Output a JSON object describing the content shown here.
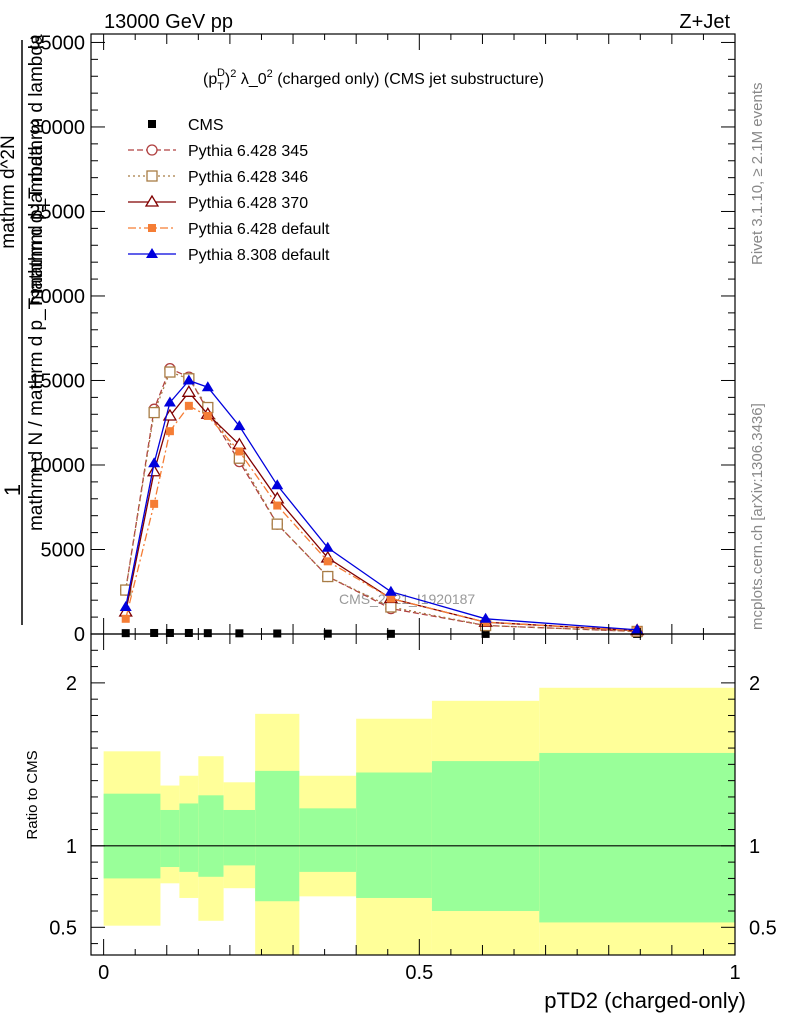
{
  "header": {
    "energy_label": "13000 GeV pp",
    "process_label": "Z+Jet"
  },
  "side_text": {
    "rivet": "Rivet 3.1.10, ≥ 2.1M events",
    "mcplots": "mcplots.cern.ch [arXiv:1306.3436]"
  },
  "chart_data": [
    {
      "type": "line",
      "title": "(p_T^D)^2 λ_0^2 (charged only) (CMS jet substructure)",
      "title_parts": {
        "p": "(p",
        "sub": "T",
        "sup": "D",
        "rest1": ")",
        "sup2": "2",
        "mid": " λ_0",
        "sup3": "2",
        "rest2": " (charged only) (CMS jet substructure)"
      },
      "ylabel_lines": [
        "1",
        "mathrm d N / mathrm d p_T mathrm d lambda",
        "mathrm d^2N",
        "mathrm d p_T mathrm d lambda"
      ],
      "watermark": "CMS_2021_I1920187",
      "ylim": [
        0,
        35500
      ],
      "xlim": [
        -0.02,
        1.0
      ],
      "yticks": [
        0,
        5000,
        10000,
        15000,
        20000,
        25000,
        30000,
        35000
      ],
      "ytick_labels": [
        "0",
        "5000",
        "10000",
        "15000",
        "20000",
        "25000",
        "30000",
        "35000"
      ],
      "legend_position": "top-left",
      "series": [
        {
          "name": "CMS",
          "color": "#000000",
          "marker": "square-filled",
          "line": "none",
          "x": [
            0.035,
            0.08,
            0.105,
            0.135,
            0.165,
            0.215,
            0.275,
            0.355,
            0.455,
            0.605,
            0.845
          ],
          "y": [
            50,
            60,
            60,
            60,
            50,
            40,
            30,
            20,
            10,
            5,
            2
          ]
        },
        {
          "name": "Pythia 6.428 345",
          "color": "#b04040",
          "marker": "circle-open",
          "line": "dashed",
          "x": [
            0.035,
            0.08,
            0.105,
            0.135,
            0.165,
            0.215,
            0.275,
            0.355,
            0.455,
            0.605,
            0.845
          ],
          "y": [
            2600,
            13300,
            15700,
            15200,
            13200,
            10200,
            6500,
            3400,
            1500,
            500,
            150
          ]
        },
        {
          "name": "Pythia 6.428 346",
          "color": "#a87c45",
          "marker": "square-open",
          "line": "dotted",
          "x": [
            0.035,
            0.08,
            0.105,
            0.135,
            0.165,
            0.215,
            0.275,
            0.355,
            0.455,
            0.605,
            0.845
          ],
          "y": [
            2600,
            13100,
            15500,
            15100,
            13400,
            10400,
            6500,
            3400,
            1600,
            500,
            150
          ]
        },
        {
          "name": "Pythia 6.428 370",
          "color": "#800000",
          "marker": "triangle-open",
          "line": "solid",
          "x": [
            0.035,
            0.08,
            0.105,
            0.135,
            0.165,
            0.215,
            0.275,
            0.355,
            0.455,
            0.605,
            0.845
          ],
          "y": [
            1300,
            9600,
            12900,
            14300,
            13000,
            11200,
            8000,
            4500,
            2100,
            700,
            200
          ]
        },
        {
          "name": "Pythia 6.428 default",
          "color": "#f57d35",
          "marker": "square-filled",
          "line": "dashdot",
          "x": [
            0.035,
            0.08,
            0.105,
            0.135,
            0.165,
            0.215,
            0.275,
            0.355,
            0.455,
            0.605,
            0.845
          ],
          "y": [
            900,
            7700,
            12000,
            13500,
            12900,
            10800,
            7600,
            4300,
            2100,
            700,
            200
          ]
        },
        {
          "name": "Pythia 8.308 default",
          "color": "#0000dd",
          "marker": "triangle-filled",
          "line": "solid",
          "x": [
            0.035,
            0.08,
            0.105,
            0.135,
            0.165,
            0.215,
            0.275,
            0.355,
            0.455,
            0.605,
            0.845
          ],
          "y": [
            1600,
            10100,
            13700,
            15000,
            14600,
            12300,
            8800,
            5100,
            2500,
            900,
            250
          ]
        }
      ]
    },
    {
      "type": "area",
      "ylabel": "Ratio to CMS",
      "xlabel": "pTD2 (charged-only)",
      "xlim": [
        -0.02,
        1.0
      ],
      "ylim": [
        0.33,
        2.3
      ],
      "xticks": [
        0,
        0.5,
        1
      ],
      "xtick_labels": [
        "0",
        "0.5",
        "1"
      ],
      "yticks": [
        0.5,
        1,
        2
      ],
      "ytick_labels": [
        "0.5",
        "1",
        "2"
      ],
      "reference_line": 1,
      "band_colors": {
        "inner": "#99ff99",
        "outer": "#ffff99"
      },
      "bins": [
        {
          "x0": 0.0,
          "x1": 0.09,
          "out_lo": 0.51,
          "out_hi": 1.58,
          "in_lo": 0.8,
          "in_hi": 1.32
        },
        {
          "x0": 0.09,
          "x1": 0.12,
          "out_lo": 0.77,
          "out_hi": 1.37,
          "in_lo": 0.87,
          "in_hi": 1.22
        },
        {
          "x0": 0.12,
          "x1": 0.15,
          "out_lo": 0.68,
          "out_hi": 1.43,
          "in_lo": 0.84,
          "in_hi": 1.26
        },
        {
          "x0": 0.15,
          "x1": 0.19,
          "out_lo": 0.54,
          "out_hi": 1.55,
          "in_lo": 0.81,
          "in_hi": 1.31
        },
        {
          "x0": 0.19,
          "x1": 0.24,
          "out_lo": 0.74,
          "out_hi": 1.39,
          "in_lo": 0.88,
          "in_hi": 1.22
        },
        {
          "x0": 0.24,
          "x1": 0.31,
          "out_lo": 0.3,
          "out_hi": 1.81,
          "in_lo": 0.66,
          "in_hi": 1.46
        },
        {
          "x0": 0.31,
          "x1": 0.4,
          "out_lo": 0.69,
          "out_hi": 1.43,
          "in_lo": 0.84,
          "in_hi": 1.23
        },
        {
          "x0": 0.4,
          "x1": 0.52,
          "out_lo": 0.3,
          "out_hi": 1.78,
          "in_lo": 0.68,
          "in_hi": 1.45
        },
        {
          "x0": 0.52,
          "x1": 0.69,
          "out_lo": 0.3,
          "out_hi": 1.89,
          "in_lo": 0.6,
          "in_hi": 1.52
        },
        {
          "x0": 0.69,
          "x1": 1.0,
          "out_lo": 0.3,
          "out_hi": 1.97,
          "in_lo": 0.53,
          "in_hi": 1.57
        }
      ]
    }
  ]
}
